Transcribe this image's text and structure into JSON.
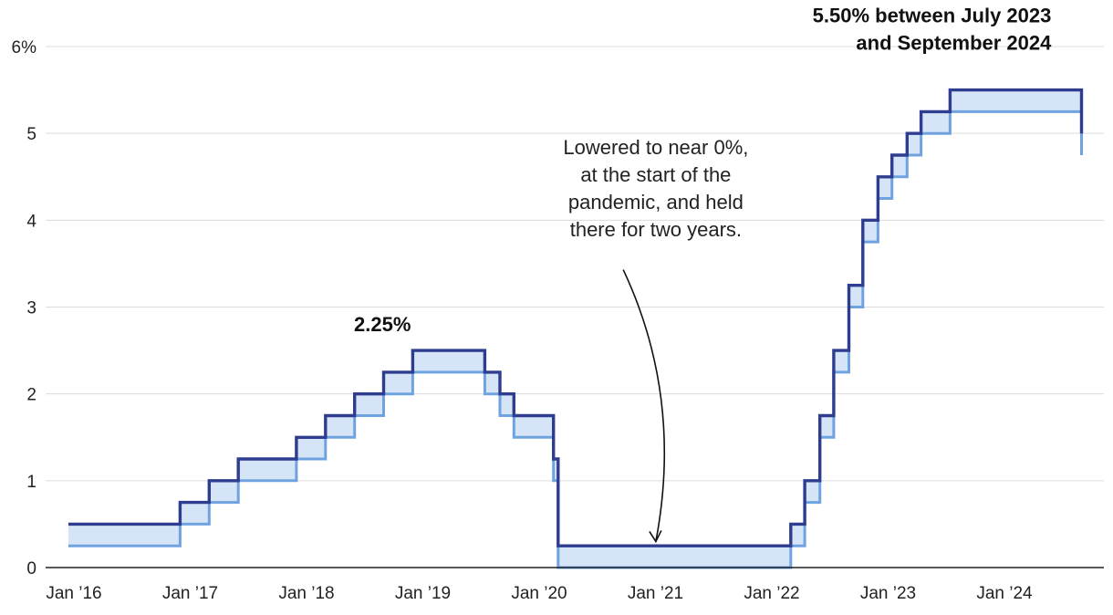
{
  "chart_data": {
    "type": "line",
    "subtype": "step-band",
    "title": "",
    "xlabel": "",
    "ylabel": "",
    "ylim": [
      0,
      6
    ],
    "yticks": [
      0,
      1,
      2,
      3,
      4,
      5,
      6
    ],
    "ytick_labels": [
      "0",
      "1",
      "2",
      "3",
      "4",
      "5",
      "6%"
    ],
    "xlim": [
      2016.0,
      2024.83
    ],
    "xticks": [
      2016,
      2017,
      2018,
      2019,
      2020,
      2021,
      2022,
      2023,
      2024
    ],
    "xtick_labels": [
      "Jan ’16",
      "Jan ’17",
      "Jan ’18",
      "Jan ’19",
      "Jan ’20",
      "Jan ’21",
      "Jan ’22",
      "Jan ’23",
      "Jan ’24"
    ],
    "grid": true,
    "colors": {
      "upper": "#2e3d8f",
      "lower": "#6fa3e0",
      "fill": "#d6e4f7"
    },
    "series": [
      {
        "name": "Upper bound",
        "points": [
          [
            2016.0,
            0.5
          ],
          [
            2016.96,
            0.5
          ],
          [
            2016.96,
            0.75
          ],
          [
            2017.21,
            0.75
          ],
          [
            2017.21,
            1.0
          ],
          [
            2017.46,
            1.0
          ],
          [
            2017.46,
            1.25
          ],
          [
            2017.96,
            1.25
          ],
          [
            2017.96,
            1.5
          ],
          [
            2018.21,
            1.5
          ],
          [
            2018.21,
            1.75
          ],
          [
            2018.46,
            1.75
          ],
          [
            2018.46,
            2.0
          ],
          [
            2018.71,
            2.0
          ],
          [
            2018.71,
            2.25
          ],
          [
            2018.96,
            2.25
          ],
          [
            2018.96,
            2.5
          ],
          [
            2019.58,
            2.5
          ],
          [
            2019.58,
            2.25
          ],
          [
            2019.71,
            2.25
          ],
          [
            2019.71,
            2.0
          ],
          [
            2019.83,
            2.0
          ],
          [
            2019.83,
            1.75
          ],
          [
            2020.17,
            1.75
          ],
          [
            2020.17,
            1.25
          ],
          [
            2020.21,
            1.25
          ],
          [
            2020.21,
            0.25
          ],
          [
            2022.21,
            0.25
          ],
          [
            2022.21,
            0.5
          ],
          [
            2022.33,
            0.5
          ],
          [
            2022.33,
            1.0
          ],
          [
            2022.46,
            1.0
          ],
          [
            2022.46,
            1.75
          ],
          [
            2022.58,
            1.75
          ],
          [
            2022.58,
            2.5
          ],
          [
            2022.71,
            2.5
          ],
          [
            2022.71,
            3.25
          ],
          [
            2022.83,
            3.25
          ],
          [
            2022.83,
            4.0
          ],
          [
            2022.96,
            4.0
          ],
          [
            2022.96,
            4.5
          ],
          [
            2023.08,
            4.5
          ],
          [
            2023.08,
            4.75
          ],
          [
            2023.21,
            4.75
          ],
          [
            2023.21,
            5.0
          ],
          [
            2023.33,
            5.0
          ],
          [
            2023.33,
            5.25
          ],
          [
            2023.58,
            5.25
          ],
          [
            2023.58,
            5.5
          ],
          [
            2024.71,
            5.5
          ],
          [
            2024.71,
            5.0
          ]
        ]
      },
      {
        "name": "Lower bound",
        "points": [
          [
            2016.0,
            0.25
          ],
          [
            2016.96,
            0.25
          ],
          [
            2016.96,
            0.5
          ],
          [
            2017.21,
            0.5
          ],
          [
            2017.21,
            0.75
          ],
          [
            2017.46,
            0.75
          ],
          [
            2017.46,
            1.0
          ],
          [
            2017.96,
            1.0
          ],
          [
            2017.96,
            1.25
          ],
          [
            2018.21,
            1.25
          ],
          [
            2018.21,
            1.5
          ],
          [
            2018.46,
            1.5
          ],
          [
            2018.46,
            1.75
          ],
          [
            2018.71,
            1.75
          ],
          [
            2018.71,
            2.0
          ],
          [
            2018.96,
            2.0
          ],
          [
            2018.96,
            2.25
          ],
          [
            2019.58,
            2.25
          ],
          [
            2019.58,
            2.0
          ],
          [
            2019.71,
            2.0
          ],
          [
            2019.71,
            1.75
          ],
          [
            2019.83,
            1.75
          ],
          [
            2019.83,
            1.5
          ],
          [
            2020.17,
            1.5
          ],
          [
            2020.17,
            1.0
          ],
          [
            2020.21,
            1.0
          ],
          [
            2020.21,
            0.0
          ],
          [
            2022.21,
            0.0
          ],
          [
            2022.21,
            0.25
          ],
          [
            2022.33,
            0.25
          ],
          [
            2022.33,
            0.75
          ],
          [
            2022.46,
            0.75
          ],
          [
            2022.46,
            1.5
          ],
          [
            2022.58,
            1.5
          ],
          [
            2022.58,
            2.25
          ],
          [
            2022.71,
            2.25
          ],
          [
            2022.71,
            3.0
          ],
          [
            2022.83,
            3.0
          ],
          [
            2022.83,
            3.75
          ],
          [
            2022.96,
            3.75
          ],
          [
            2022.96,
            4.25
          ],
          [
            2023.08,
            4.25
          ],
          [
            2023.08,
            4.5
          ],
          [
            2023.21,
            4.5
          ],
          [
            2023.21,
            4.75
          ],
          [
            2023.33,
            4.75
          ],
          [
            2023.33,
            5.0
          ],
          [
            2023.58,
            5.0
          ],
          [
            2023.58,
            5.25
          ],
          [
            2024.71,
            5.25
          ],
          [
            2024.71,
            4.75
          ]
        ]
      }
    ],
    "annotations": [
      {
        "id": "peak-2019",
        "lines": [
          "2.25%"
        ],
        "bold": true,
        "x": 2018.7,
        "y": 2.72,
        "align": "middle"
      },
      {
        "id": "peak-2023",
        "lines": [
          "5.50% between July 2023",
          "and September 2024"
        ],
        "bold": true,
        "x": 2024.45,
        "y": 6.28,
        "align": "end"
      },
      {
        "id": "pandemic-note",
        "lines": [
          "Lowered to near 0%,",
          "at the start of the",
          "pandemic, and held",
          "there for two years."
        ],
        "bold": false,
        "x": 2021.05,
        "y": 4.76,
        "align": "middle",
        "arrow_from": [
          2020.77,
          3.43
        ],
        "arrow_to": [
          2021.05,
          0.3
        ]
      }
    ]
  }
}
